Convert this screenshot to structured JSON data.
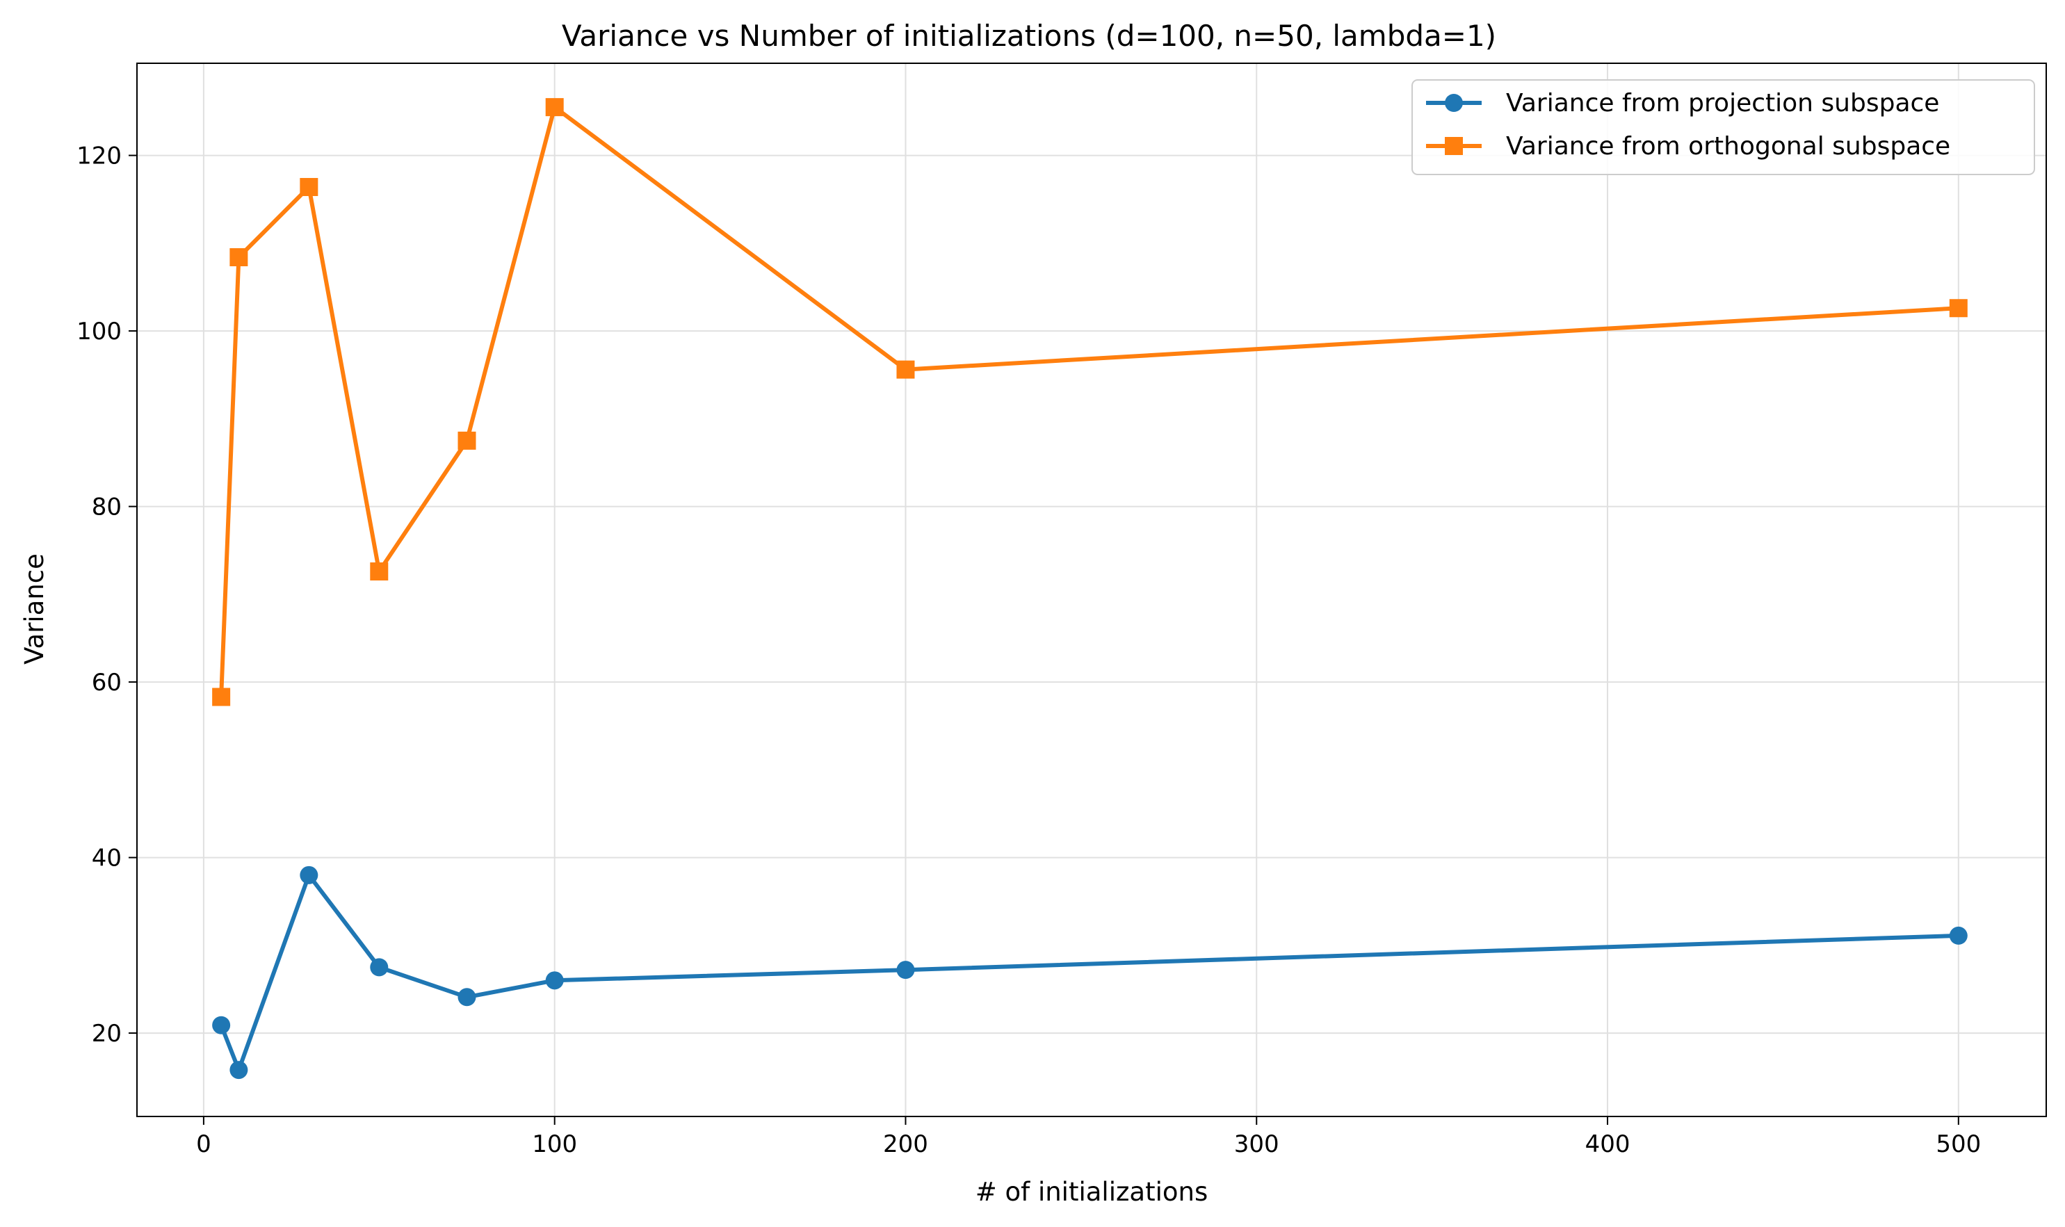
{
  "chart_data": {
    "type": "line",
    "title": "Variance vs Number of initializations (d=100, n=50, lambda=1)",
    "xlabel": "# of initializations",
    "ylabel": "Variance",
    "x": [
      5,
      10,
      30,
      50,
      75,
      100,
      200,
      500
    ],
    "xlim": [
      -19,
      525
    ],
    "ylim": [
      10.5,
      130.5
    ],
    "xticks": [
      0,
      100,
      200,
      300,
      400,
      500
    ],
    "yticks": [
      20,
      40,
      60,
      80,
      100,
      120
    ],
    "grid": true,
    "legend_position": "top-right",
    "series": [
      {
        "name": "Variance from projection subspace",
        "color": "#1f77b4",
        "marker": "circle",
        "values": [
          20.9,
          15.8,
          38.0,
          27.5,
          24.1,
          26.0,
          27.2,
          31.1
        ]
      },
      {
        "name": "Variance from orthogonal subspace",
        "color": "#ff7f0e",
        "marker": "square",
        "values": [
          58.3,
          108.4,
          116.4,
          72.6,
          87.5,
          125.5,
          95.6,
          102.6
        ]
      }
    ]
  }
}
